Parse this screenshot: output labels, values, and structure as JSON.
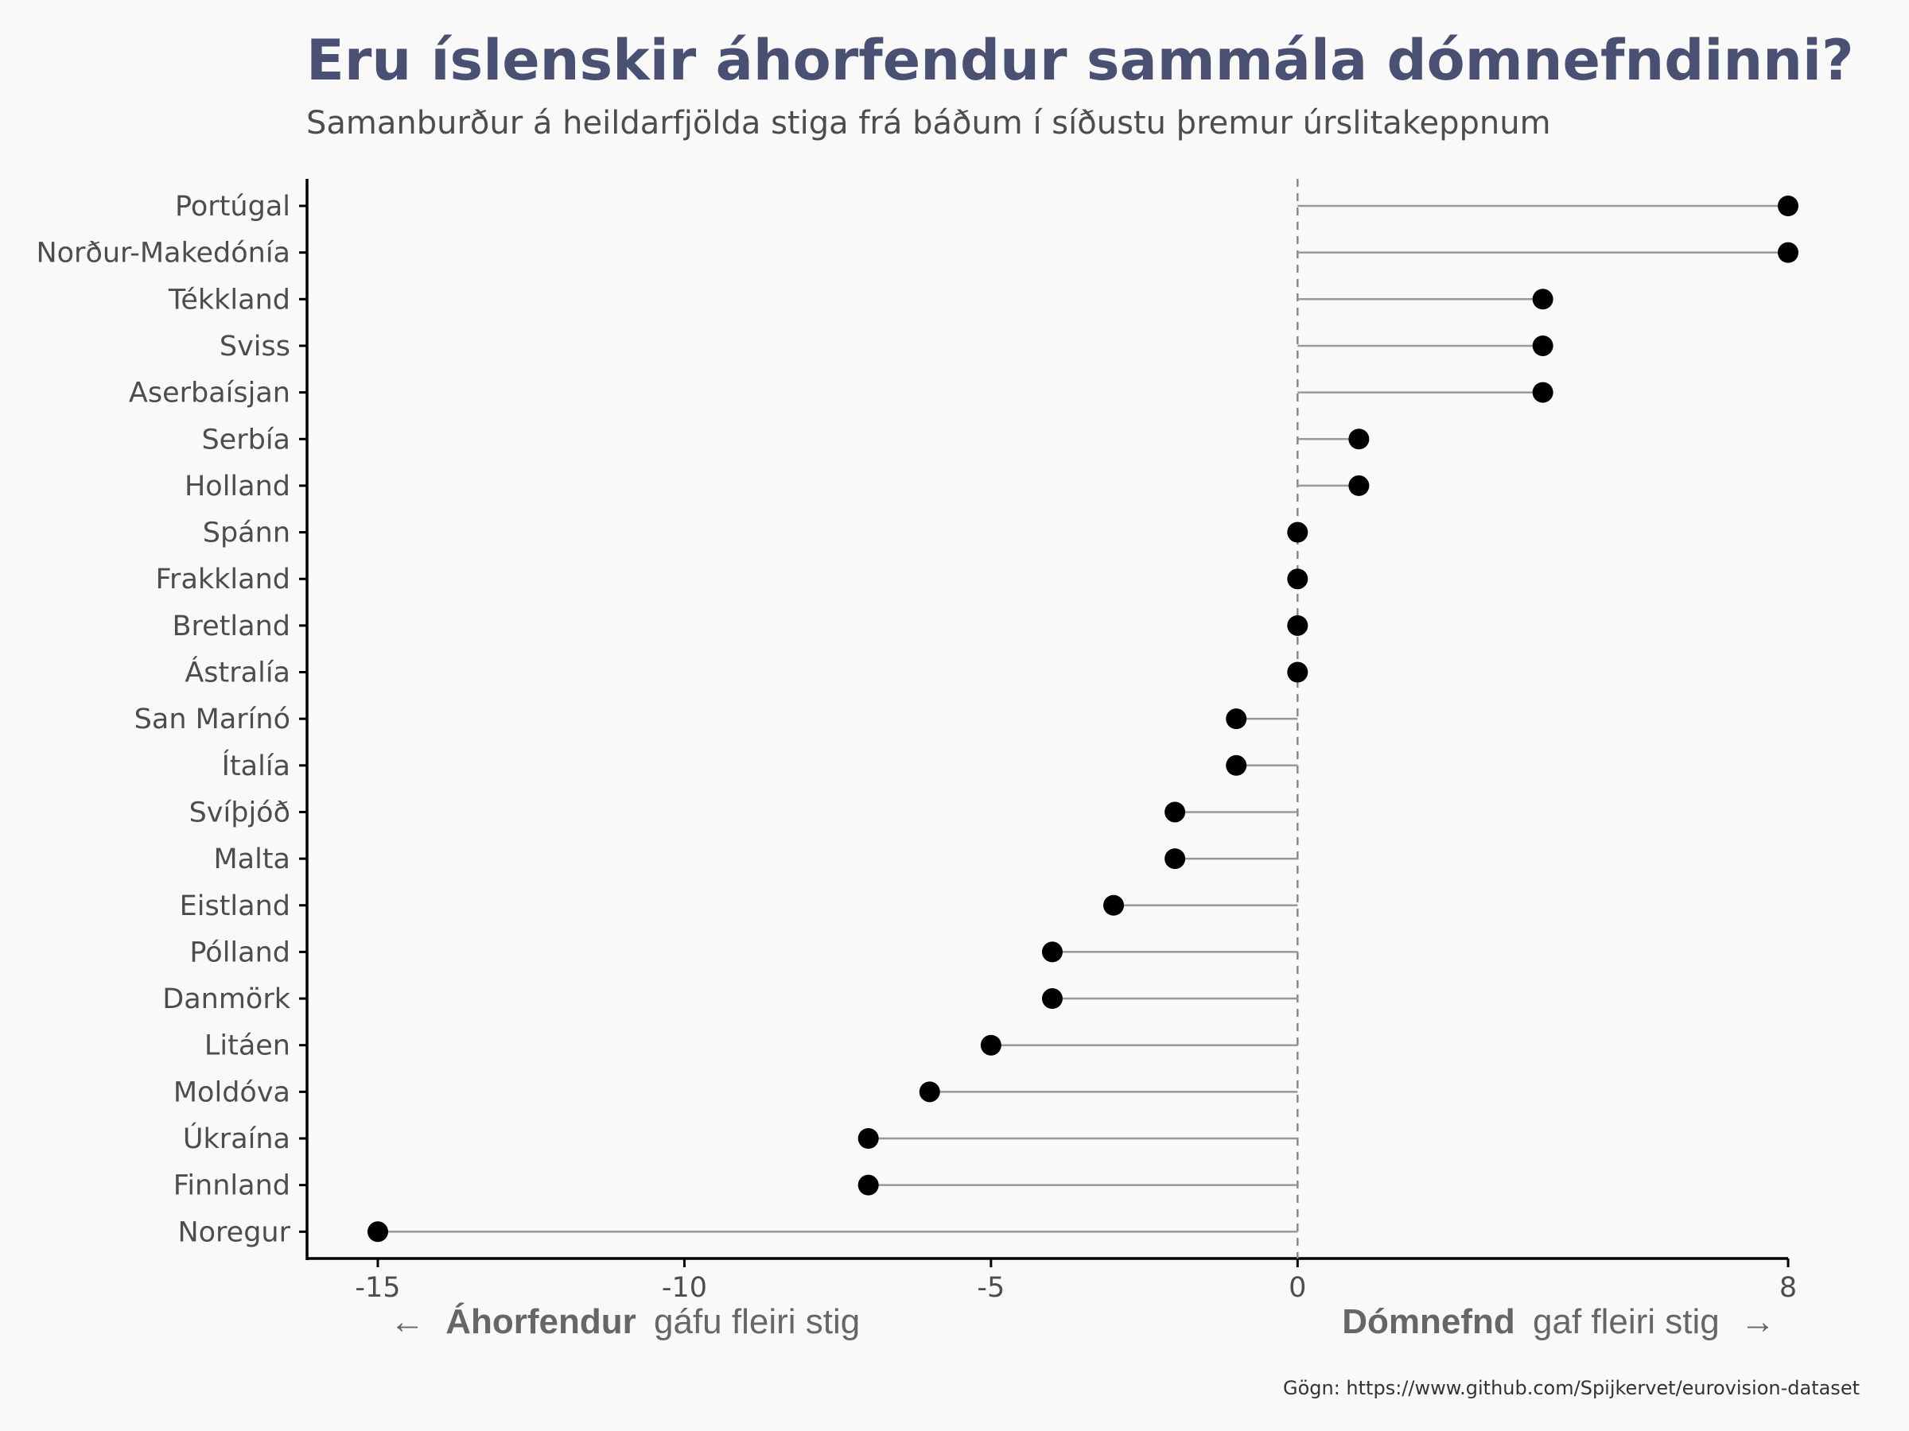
{
  "chart_data": {
    "type": "lollipop",
    "title": "Eru íslenskir áhorfendur sammála dómnefndinni?",
    "subtitle": "Samanburður á heildarfjölda stiga frá báðum í síðustu þremur úrslitakeppnum",
    "categories": [
      "Portúgal",
      "Norður-Makedónía",
      "Tékkland",
      "Sviss",
      "Aserbaísjan",
      "Serbía",
      "Holland",
      "Spánn",
      "Frakkland",
      "Bretland",
      "Ástralía",
      "San Marínó",
      "Ítalía",
      "Svíþjóð",
      "Malta",
      "Eistland",
      "Pólland",
      "Danmörk",
      "Litáen",
      "Moldóva",
      "Úkraína",
      "Finnland",
      "Noregur"
    ],
    "values": [
      8,
      8,
      4,
      4,
      4,
      1,
      1,
      0,
      0,
      0,
      0,
      -1,
      -1,
      -2,
      -2,
      -3,
      -4,
      -4,
      -5,
      -6,
      -7,
      -7,
      -15
    ],
    "xlim": [
      -15,
      8
    ],
    "xticks": [
      "-15",
      "-10",
      "-5",
      "0",
      "8"
    ],
    "xtick_values": [
      -15,
      -10,
      -5,
      0,
      8
    ],
    "reference_line": 0,
    "annotation_left": {
      "arrow": "←",
      "bold": "Áhorfendur",
      "rest": "gáfu fleiri stig"
    },
    "annotation_right": {
      "bold": "Dómnefnd",
      "rest": "gaf fleiri stig",
      "arrow": "→"
    },
    "caption": "Gögn: https://www.github.com/Spijkervet/eurovision-dataset",
    "colors": {
      "point": "#000000",
      "segment": "#999999",
      "title": "#4a5072",
      "background": "#f9f9f9"
    }
  }
}
